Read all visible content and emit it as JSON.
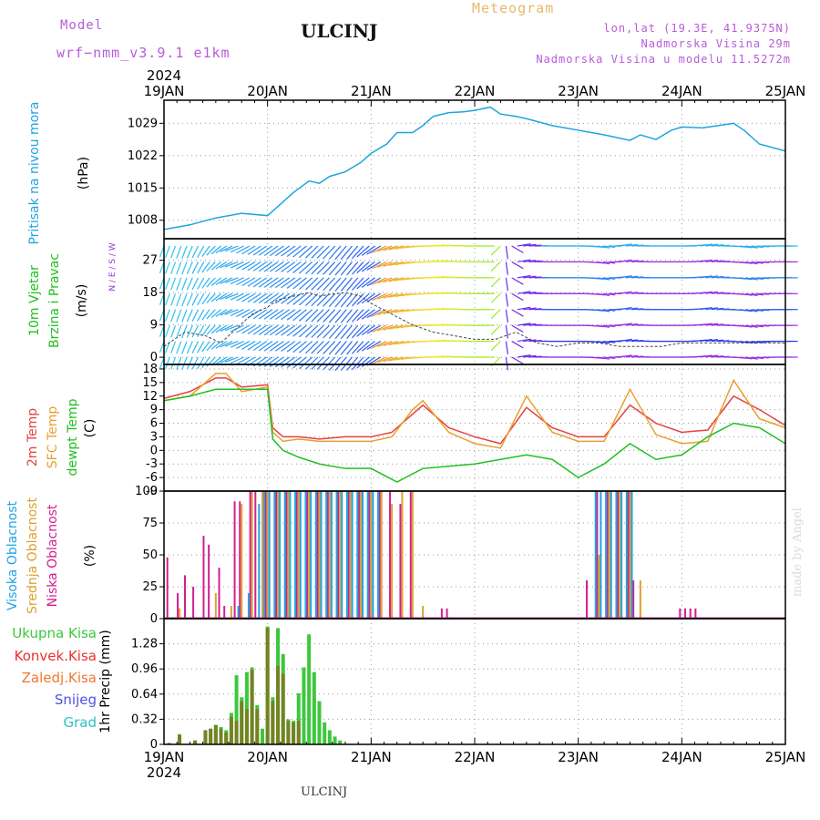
{
  "header": {
    "model_label": "Model",
    "model_name": "wrf−nmm_v3.9.1 e1km",
    "station": "ULCINJ",
    "meteogram": "Meteogram",
    "lonlat": "lon,lat (19.3E, 41.9375N)",
    "elevation": "Nadmorska Visina 29m",
    "model_elevation": "Nadmorska Visina u modelu 11.5272m"
  },
  "footer": {
    "station": "ULCINJ",
    "credit": "made by Angel"
  },
  "time_axis": {
    "year": "2024",
    "labels": [
      "19JAN",
      "20JAN",
      "21JAN",
      "22JAN",
      "23JAN",
      "24JAN",
      "25JAN"
    ]
  },
  "colors": {
    "pressure": "#1ea5e0",
    "temp": "#e84040",
    "sfc": "#e8a030",
    "dew": "#20c020",
    "wind_purple": "#9a30e0",
    "precip_total": "#3cc83c",
    "precip_conv": "#e83030",
    "precip_froz": "#f07830",
    "snow": "#5050e8",
    "graupel": "#30c0c0",
    "cloud_high": "#1ea5e0",
    "cloud_mid": "#e0a030",
    "cloud_low": "#d02090"
  },
  "chart_data": [
    {
      "type": "line",
      "id": "pressure",
      "ylabel_1": "Pritisak na nivou mora",
      "ylabel_2": "(hPa)",
      "ylim": [
        1004,
        1034
      ],
      "ticks": [
        1008,
        1015,
        1022,
        1029
      ],
      "x_unit": "days since 19JAN 00UTC",
      "series": [
        {
          "x": [
            0,
            0.25,
            0.5,
            0.75,
            1.0,
            1.1,
            1.25,
            1.4,
            1.5,
            1.6,
            1.75,
            1.9,
            2.0,
            2.15,
            2.25,
            2.4,
            2.5,
            2.6,
            2.75,
            2.9,
            3.0,
            3.15,
            3.25,
            3.4,
            3.5,
            3.75,
            4.0,
            4.25,
            4.5,
            4.6,
            4.75,
            4.9,
            5.0,
            5.2,
            5.35,
            5.5,
            5.6,
            5.75,
            6.0
          ],
          "y": [
            1006,
            1007,
            1008.5,
            1009.5,
            1009,
            1011,
            1014,
            1016.5,
            1016,
            1017.5,
            1018.5,
            1020.5,
            1022.5,
            1024.5,
            1027,
            1027,
            1028.5,
            1030.5,
            1031.3,
            1031.5,
            1031.8,
            1032.5,
            1031,
            1030.5,
            1030,
            1028.5,
            1027.5,
            1026.5,
            1025.3,
            1026.5,
            1025.5,
            1027.5,
            1028.2,
            1028,
            1028.5,
            1029,
            1027.5,
            1024.5,
            1023
          ]
        }
      ]
    },
    {
      "type": "line",
      "id": "wind",
      "ylabel_1": "10m Vjetar",
      "ylabel_2": "Brzina i Pravac",
      "ylabel_3": "(m/s)",
      "compass": "N / E / S / W",
      "ylim": [
        -2,
        33
      ],
      "ticks": [
        0,
        9,
        18,
        27
      ],
      "x_unit": "days since 19JAN 00UTC",
      "note": "speed trace; barbs point toward mean direction",
      "series": [
        {
          "name": "",
          "x": [
            0,
            0.2,
            0.4,
            0.55,
            0.7,
            0.85,
            1.0,
            1.1,
            1.25,
            1.4,
            1.5,
            1.6,
            1.75,
            1.9,
            2.0,
            2.2,
            2.4,
            2.6,
            2.8,
            3.0,
            3.2,
            3.4,
            3.6,
            3.8,
            4.0,
            4.2,
            4.4,
            4.6,
            4.8,
            5.0,
            5.2,
            5.4,
            5.6,
            5.8,
            6.0
          ],
          "y": [
            3,
            7,
            6,
            4,
            8,
            12,
            14,
            16,
            17,
            18,
            17,
            17.5,
            18,
            17,
            15,
            12,
            9,
            7,
            6,
            5,
            5,
            7,
            4,
            3,
            4,
            4,
            3,
            3,
            3,
            4,
            4,
            4,
            4,
            4,
            4
          ]
        }
      ],
      "direction_deg": [
        200,
        200,
        210,
        230,
        250,
        240,
        235,
        235,
        235,
        230,
        225,
        225,
        220,
        220,
        230,
        250,
        260,
        270,
        275,
        270,
        270,
        80,
        90,
        90,
        90,
        100,
        80,
        90,
        90,
        90,
        80,
        90,
        100,
        90,
        90
      ]
    },
    {
      "type": "line",
      "id": "temperature",
      "ylim": [
        -9,
        19
      ],
      "ticks": [
        -9,
        -6,
        -3,
        0,
        3,
        6,
        9,
        12,
        15,
        18
      ],
      "ylabel_1": "2m Temp",
      "ylabel_2": "SFC Temp",
      "ylabel_3": "dewpt Temp",
      "ylabel_4": "(C)",
      "x_unit": "days since 19JAN 00UTC",
      "series": [
        {
          "name": "2m Temp",
          "x": [
            0,
            0.25,
            0.5,
            0.6,
            0.75,
            1.0,
            1.05,
            1.15,
            1.3,
            1.5,
            1.75,
            2.0,
            2.2,
            2.4,
            2.5,
            2.75,
            3.0,
            3.25,
            3.5,
            3.75,
            4.0,
            4.25,
            4.5,
            4.75,
            5.0,
            5.25,
            5.5,
            5.75,
            6.0
          ],
          "y": [
            11.5,
            13,
            16,
            16,
            14,
            14.5,
            5,
            3,
            3,
            2.5,
            3,
            3,
            4,
            8,
            10,
            5,
            3,
            1.5,
            9.5,
            5,
            3,
            3,
            10,
            6,
            4,
            4.5,
            12,
            9,
            5.5
          ]
        },
        {
          "name": "SFC Temp",
          "x": [
            0,
            0.25,
            0.5,
            0.6,
            0.75,
            1.0,
            1.05,
            1.15,
            1.3,
            1.5,
            1.75,
            2.0,
            2.2,
            2.4,
            2.5,
            2.75,
            3.0,
            3.25,
            3.5,
            3.75,
            4.0,
            4.25,
            4.5,
            4.75,
            5.0,
            5.25,
            5.5,
            5.75,
            6.0
          ],
          "y": [
            11,
            12,
            17,
            17,
            13,
            14,
            4,
            2,
            2.5,
            2,
            2,
            2,
            3,
            9,
            11,
            4,
            1.5,
            0.5,
            12,
            4,
            2,
            2,
            13.5,
            3.5,
            1.5,
            2,
            15.5,
            7,
            5
          ]
        },
        {
          "name": "dewpt Temp",
          "x": [
            0,
            0.25,
            0.5,
            0.75,
            1.0,
            1.05,
            1.15,
            1.3,
            1.5,
            1.75,
            2.0,
            2.25,
            2.5,
            2.75,
            3.0,
            3.25,
            3.5,
            3.75,
            4.0,
            4.25,
            4.5,
            4.75,
            5.0,
            5.25,
            5.5,
            5.75,
            6.0
          ],
          "y": [
            11,
            12,
            13.5,
            13.5,
            13.5,
            2.5,
            0,
            -1.5,
            -3,
            -4,
            -4,
            -7,
            -4,
            -3.5,
            -3,
            -2,
            -1,
            -2,
            -6,
            -3,
            1.5,
            -2,
            -1,
            3,
            6,
            5,
            1.5
          ]
        }
      ]
    },
    {
      "type": "bar",
      "id": "cloud",
      "ylim": [
        0,
        100
      ],
      "ticks": [
        0,
        25,
        50,
        75,
        100
      ],
      "ylabel_1": "Visoka Oblacnost",
      "ylabel_2": "Srednja Oblacnost",
      "ylabel_3": "Niska Oblacnost",
      "ylabel_4": "(%)",
      "x_unit": "days since 19JAN 00UTC",
      "high": {
        "x": [
          0.7,
          0.8,
          0.9,
          0.95,
          1.0,
          1.05,
          1.1,
          1.15,
          1.2,
          1.25,
          1.3,
          1.35,
          1.4,
          1.45,
          1.5,
          1.55,
          1.6,
          1.65,
          1.7,
          1.75,
          1.8,
          1.85,
          1.9,
          1.95,
          2.0,
          2.05,
          4.15,
          4.2,
          4.25,
          4.3,
          4.35,
          4.4,
          4.45,
          4.5
        ],
        "values": [
          10,
          20,
          90,
          100,
          100,
          100,
          100,
          100,
          100,
          100,
          100,
          100,
          100,
          100,
          100,
          100,
          100,
          100,
          100,
          100,
          100,
          100,
          100,
          100,
          100,
          100,
          100,
          100,
          100,
          100,
          100,
          100,
          100,
          100
        ]
      },
      "mid": {
        "x": [
          0.15,
          0.5,
          0.65,
          0.75,
          0.85,
          0.95,
          1.0,
          1.1,
          1.2,
          1.3,
          1.4,
          1.5,
          1.6,
          1.7,
          1.8,
          1.9,
          2.0,
          2.1,
          2.2,
          2.3,
          2.4,
          2.5,
          4.2,
          4.3,
          4.4,
          4.5,
          4.6
        ],
        "values": [
          8,
          20,
          10,
          90,
          100,
          100,
          100,
          100,
          100,
          100,
          100,
          100,
          100,
          100,
          100,
          100,
          100,
          100,
          90,
          100,
          100,
          10,
          50,
          100,
          100,
          100,
          30
        ]
      },
      "low": {
        "x": [
          0.05,
          0.15,
          0.22,
          0.3,
          0.4,
          0.45,
          0.55,
          0.6,
          0.7,
          0.75,
          0.85,
          0.9,
          1.0,
          1.1,
          1.2,
          1.3,
          1.4,
          1.5,
          1.6,
          1.7,
          1.8,
          1.9,
          2.0,
          2.1,
          2.2,
          2.3,
          2.4,
          2.7,
          2.75,
          4.1,
          4.2,
          4.3,
          4.4,
          4.5,
          4.55,
          5.0,
          5.05,
          5.1,
          5.15
        ],
        "values": [
          48,
          20,
          34,
          25,
          65,
          58,
          40,
          10,
          92,
          92,
          100,
          100,
          100,
          100,
          100,
          100,
          100,
          100,
          100,
          100,
          100,
          100,
          100,
          100,
          100,
          90,
          100,
          8,
          8,
          30,
          100,
          100,
          100,
          100,
          30,
          8,
          8,
          8,
          8
        ]
      }
    },
    {
      "type": "bar",
      "id": "precip",
      "ylim": [
        0,
        1.6
      ],
      "ticks": [
        0,
        0.32,
        0.64,
        0.96,
        1.28
      ],
      "legend": [
        "Ukupna Kisa",
        "Konvek.Kisa",
        "Zaledj.Kisa",
        "Snijeg",
        "Grad"
      ],
      "ylabel": "1hr Precip (mm)",
      "x_unit": "days since 19JAN 00UTC",
      "total": {
        "x": [
          0.05,
          0.15,
          0.3,
          0.4,
          0.45,
          0.5,
          0.55,
          0.6,
          0.65,
          0.7,
          0.75,
          0.8,
          0.85,
          0.9,
          0.95,
          1.0,
          1.05,
          1.1,
          1.15,
          1.2,
          1.25,
          1.3,
          1.35,
          1.4,
          1.45,
          1.5,
          1.55,
          1.6,
          1.65,
          1.7
        ],
        "values": [
          0.02,
          0.13,
          0.05,
          0.18,
          0.2,
          0.25,
          0.22,
          0.18,
          0.4,
          0.88,
          0.6,
          0.92,
          0.98,
          0.5,
          0.2,
          1.5,
          0.6,
          1.48,
          1.15,
          0.32,
          0.3,
          0.65,
          0.98,
          1.4,
          0.92,
          0.55,
          0.28,
          0.18,
          0.1,
          0.05
        ]
      },
      "convective": {
        "x": [
          0.15,
          0.3,
          0.4,
          0.45,
          0.5,
          0.55,
          0.6,
          0.65,
          0.7,
          0.75,
          0.8,
          0.85,
          0.9,
          1.0,
          1.05,
          1.1,
          1.15,
          1.2,
          1.25,
          1.3
        ],
        "values": [
          0.12,
          0.05,
          0.18,
          0.2,
          0.24,
          0.2,
          0.15,
          0.35,
          0.3,
          0.55,
          0.45,
          0.95,
          0.45,
          1.48,
          0.55,
          1.0,
          0.9,
          0.3,
          0.28,
          0.3
        ]
      }
    }
  ]
}
